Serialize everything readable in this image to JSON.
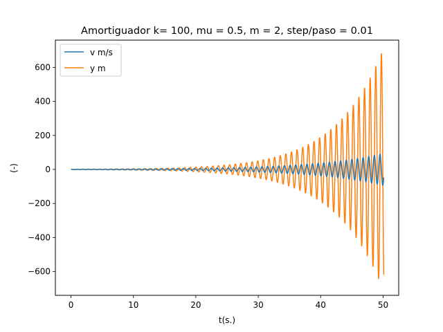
{
  "chart_data": {
    "type": "line",
    "title": "Amortiguador k= 100, mu = 0.5, m = 2, step/paso = 0.01",
    "xlabel": "t(s.)",
    "ylabel": "(-)",
    "xlim": [
      -2.5,
      52.5
    ],
    "ylim": [
      -740,
      760
    ],
    "xticks": [
      0,
      10,
      20,
      30,
      40,
      50
    ],
    "yticks": [
      -600,
      -400,
      -200,
      0,
      200,
      400,
      600
    ],
    "xtick_labels": [
      "0",
      "10",
      "20",
      "30",
      "40",
      "50"
    ],
    "ytick_labels": [
      "−600",
      "−400",
      "−200",
      "0",
      "200",
      "400",
      "600"
    ],
    "grid": false,
    "legend_position": "upper-left",
    "series": [
      {
        "name": "v m/s",
        "color": "#1f77b4",
        "t_range": [
          0,
          50.1
        ],
        "period": 0.9,
        "amplitude_at_start": 1,
        "amplitude_at_end": 95
      },
      {
        "name": "y m",
        "color": "#ff7f0e",
        "t_range": [
          0,
          50.1
        ],
        "period": 0.9,
        "amplitude_at_start": 1,
        "amplitude_at_end": 715
      }
    ]
  }
}
